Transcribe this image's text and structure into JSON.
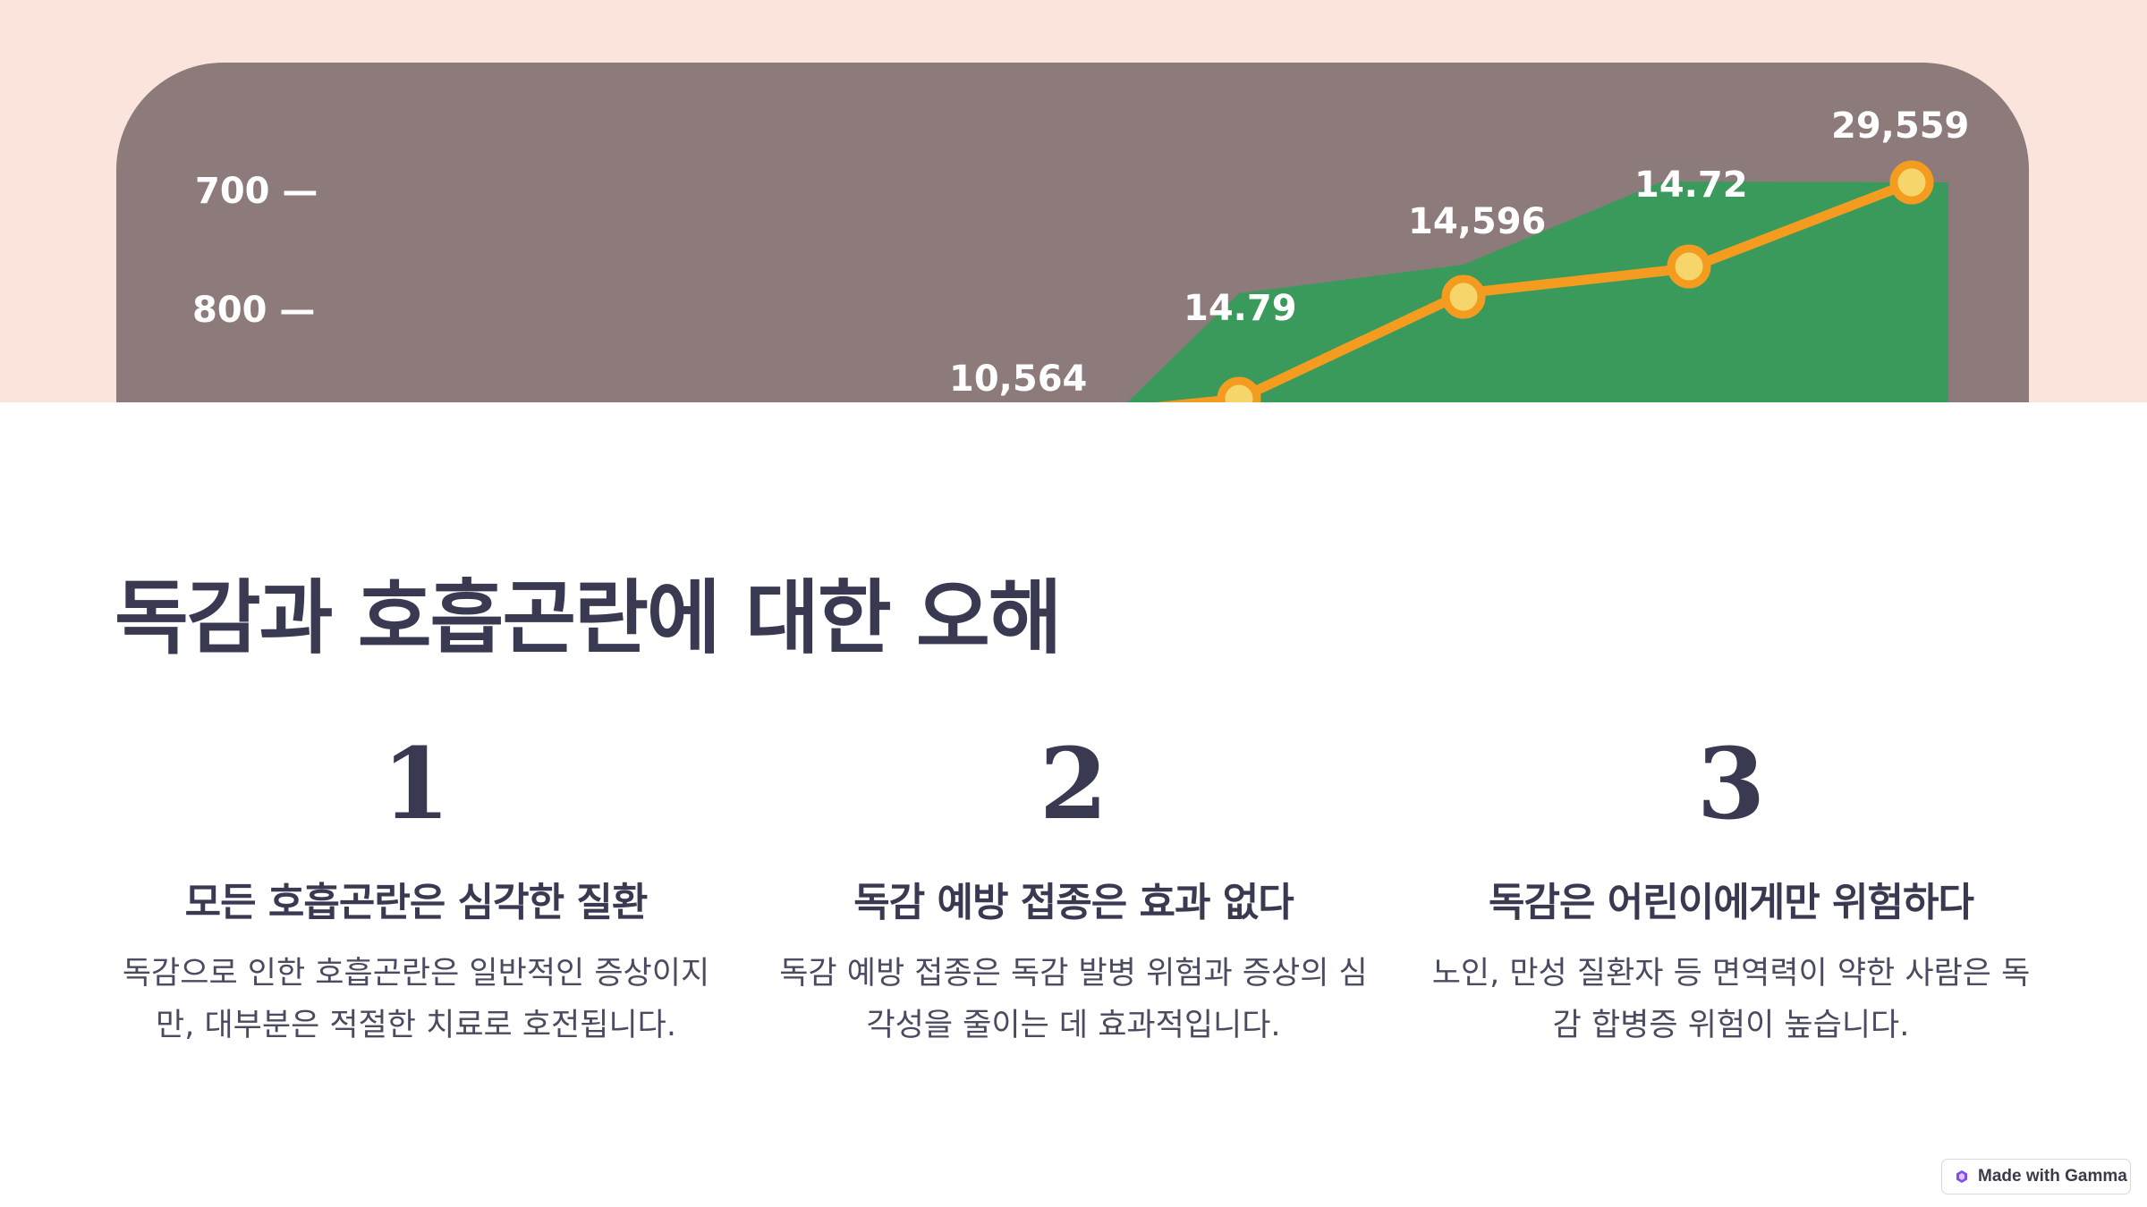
{
  "hero_chart": {
    "y_ticks": [
      "700 —",
      "800 —"
    ],
    "point_labels": [
      "10,564",
      "14.79",
      "14,596",
      "14.72",
      "29,559"
    ],
    "colors": {
      "background": "#fbe4db",
      "card": "#8c7b7a",
      "line": "#f39c1f",
      "fill": "#3a9a5c"
    }
  },
  "title": "독감과 호흡곤란에 대한 오해",
  "columns": [
    {
      "number": "1",
      "heading": "모든 호흡곤란은 심각한 질환",
      "description": "독감으로 인한 호흡곤란은 일반적인 증상이지만, 대부분은 적절한 치료로 호전됩니다."
    },
    {
      "number": "2",
      "heading": "독감 예방 접종은 효과 없다",
      "description": "독감 예방 접종은 독감 발병 위험과 증상의 심각성을 줄이는 데 효과적입니다."
    },
    {
      "number": "3",
      "heading": "독감은 어린이에게만 위험하다",
      "description": "노인, 만성 질환자 등 면역력이 약한 사람은 독감 합병증 위험이 높습니다."
    }
  ],
  "badge": {
    "label": "Made with Gamma",
    "icon": "gamma-logo-icon"
  }
}
